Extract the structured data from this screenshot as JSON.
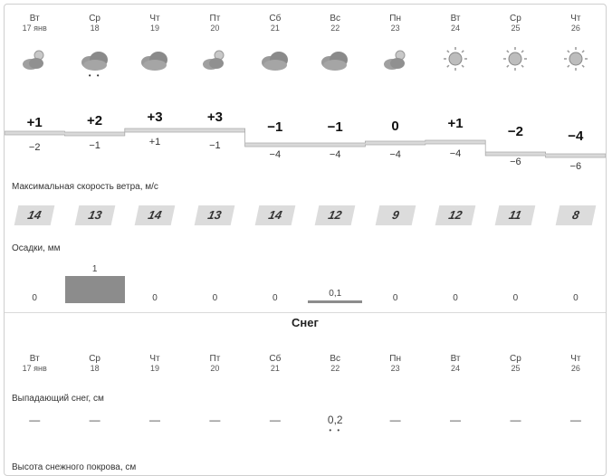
{
  "days": [
    {
      "wd": "Вт",
      "date": "17 янв"
    },
    {
      "wd": "Ср",
      "date": "18"
    },
    {
      "wd": "Чт",
      "date": "19"
    },
    {
      "wd": "Пт",
      "date": "20"
    },
    {
      "wd": "Сб",
      "date": "21"
    },
    {
      "wd": "Вс",
      "date": "22"
    },
    {
      "wd": "Пн",
      "date": "23"
    },
    {
      "wd": "Вт",
      "date": "24"
    },
    {
      "wd": "Ср",
      "date": "25"
    },
    {
      "wd": "Чт",
      "date": "26"
    }
  ],
  "icons": [
    "sun-cloud-icon",
    "cloud-icon",
    "cloud-icon",
    "sun-cloud-icon",
    "cloud-icon",
    "cloud-icon",
    "sun-cloud-icon",
    "sun-icon",
    "sun-icon",
    "sun-icon"
  ],
  "drops": [
    "",
    "• •",
    "",
    "",
    "",
    "",
    "",
    "",
    "",
    ""
  ],
  "temps": {
    "max": [
      "+1",
      "+2",
      "+3",
      "+3",
      "−1",
      "−1",
      "0",
      "+1",
      "−2",
      "−4"
    ],
    "min": [
      "−2",
      "−1",
      "+1",
      "−1",
      "−4",
      "−4",
      "−4",
      "−4",
      "−6",
      "−6"
    ]
  },
  "wind": {
    "label": "Максимальная скорость ветра, м/с",
    "values": [
      "14",
      "13",
      "14",
      "13",
      "14",
      "12",
      "9",
      "12",
      "11",
      "8"
    ]
  },
  "precip": {
    "label": "Осадки, мм",
    "values": [
      "0",
      "1",
      "0",
      "0",
      "0",
      "0,1",
      "0",
      "0",
      "0",
      "0"
    ]
  },
  "snow": {
    "title": "Снег",
    "fresh_label": "Выпадающий снег, см",
    "fresh_values": [
      "—",
      "—",
      "—",
      "—",
      "—",
      "0,2",
      "—",
      "—",
      "—",
      "—"
    ],
    "fresh_marks": [
      "",
      "",
      "",
      "",
      "",
      "• •",
      "",
      "",
      "",
      ""
    ],
    "cover_label": "Высота снежного покрова, см"
  },
  "colors": {
    "bar": "#8c8c8c",
    "wind_bg": "#dcdcdc",
    "band": "#d9d9d9"
  }
}
